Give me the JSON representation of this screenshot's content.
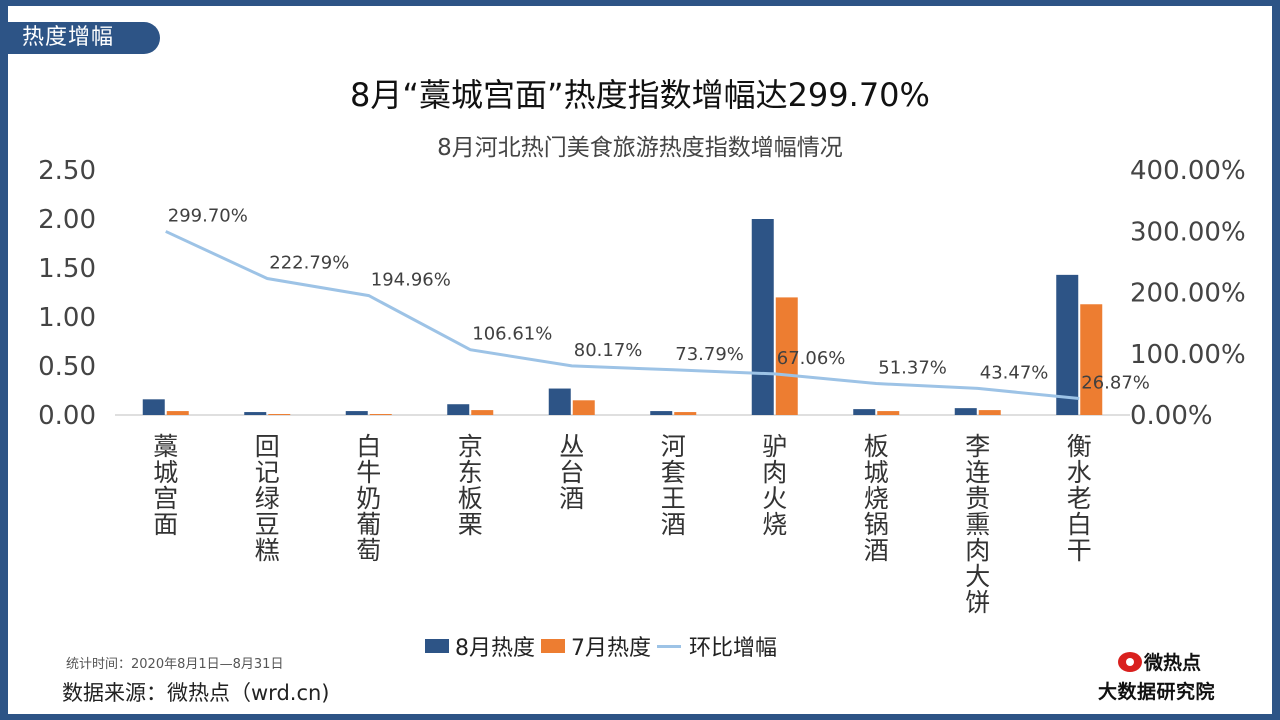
{
  "tag": "热度增幅",
  "title": "8月“藁城宫面”热度指数增幅达299.70%",
  "subtitle": "8月河北热门美食旅游热度指数增幅情况",
  "note": "统计时间：2020年8月1日—8月31日",
  "source": "数据来源：微热点（wrd.cn)",
  "logo": {
    "name": "微热点",
    "sub": "大数据研究院"
  },
  "colors": {
    "aug": "#2d5486",
    "jul": "#ed7d31",
    "growth": "#9dc3e6",
    "frame": "#2d5486"
  },
  "legend": [
    "8月热度",
    "7月热度",
    "环比增幅"
  ],
  "chart_data": {
    "type": "bar",
    "title": "8月河北热门美食旅游热度指数增幅情况",
    "categories": [
      "藁城宫面",
      "回记绿豆糕",
      "白牛奶葡萄",
      "京东板栗",
      "丛台酒",
      "河套王酒",
      "驴肉火烧",
      "板城烧锅酒",
      "李连贵熏肉大饼",
      "衡水老白干"
    ],
    "series": [
      {
        "name": "8月热度",
        "axis": "left",
        "values": [
          0.16,
          0.03,
          0.04,
          0.11,
          0.27,
          0.04,
          2.0,
          0.06,
          0.07,
          1.43
        ]
      },
      {
        "name": "7月热度",
        "axis": "left",
        "values": [
          0.04,
          0.01,
          0.01,
          0.05,
          0.15,
          0.03,
          1.2,
          0.04,
          0.05,
          1.13
        ]
      },
      {
        "name": "环比增幅",
        "axis": "right",
        "type": "line",
        "values": [
          299.7,
          222.79,
          194.96,
          106.61,
          80.17,
          73.79,
          67.06,
          51.37,
          43.47,
          26.87
        ]
      }
    ],
    "growth_labels": [
      "299.70%",
      "222.79%",
      "194.96%",
      "106.61%",
      "80.17%",
      "73.79%",
      "67.06%",
      "51.37%",
      "43.47%",
      "26.87%"
    ],
    "ylim": [
      0,
      2.5
    ],
    "yticks": [
      "0.00",
      "0.50",
      "1.00",
      "1.50",
      "2.00",
      "2.50"
    ],
    "y2lim": [
      0,
      400
    ],
    "y2ticks": [
      "0.00%",
      "100.00%",
      "200.00%",
      "300.00%",
      "400.00%"
    ],
    "legend_position": "bottom"
  }
}
